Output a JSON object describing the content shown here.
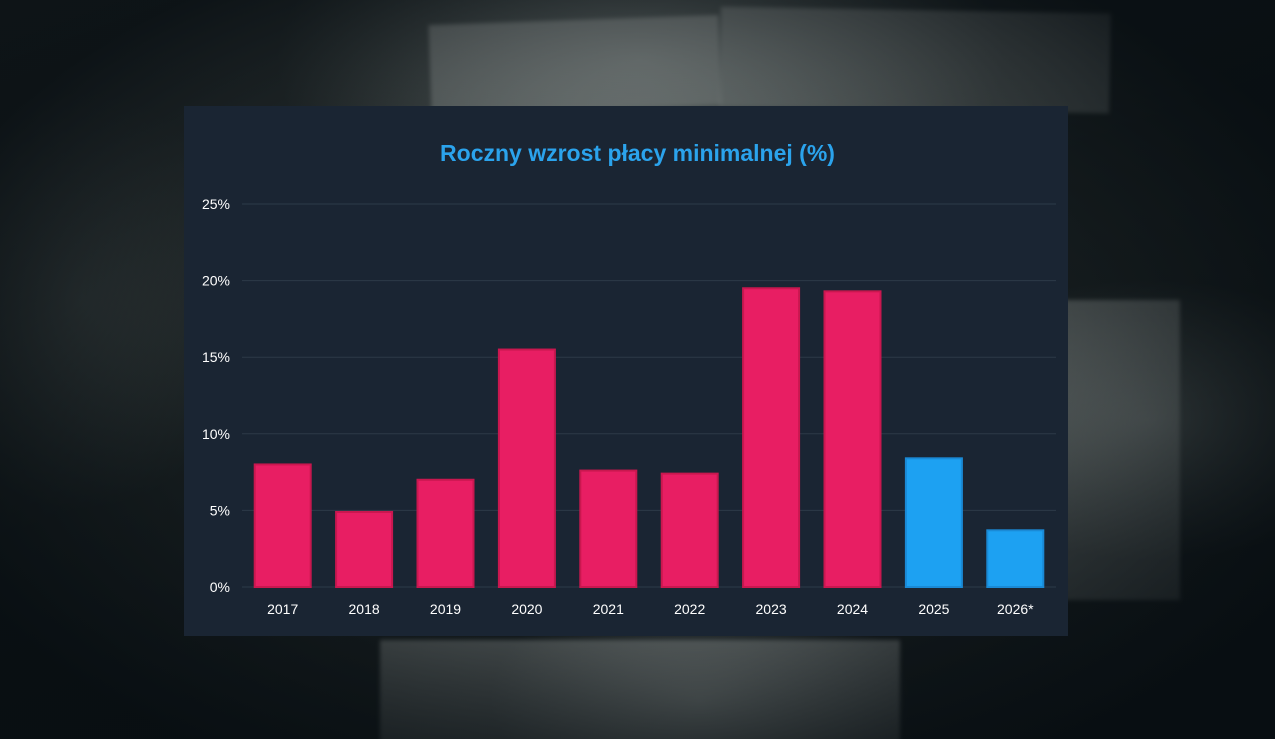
{
  "chart_data": {
    "type": "bar",
    "title": "Roczny wzrost płacy minimalnej (%)",
    "categories": [
      "2017",
      "2018",
      "2019",
      "2020",
      "2021",
      "2022",
      "2023",
      "2024",
      "2025",
      "2026*"
    ],
    "values": [
      8.0,
      4.9,
      7.0,
      15.5,
      7.6,
      7.4,
      19.5,
      19.3,
      8.4,
      3.7
    ],
    "bar_colors": [
      "#e81e63",
      "#e81e63",
      "#e81e63",
      "#e81e63",
      "#e81e63",
      "#e81e63",
      "#e81e63",
      "#e81e63",
      "#1da1f2",
      "#1da1f2"
    ],
    "y_ticks": [
      "0%",
      "5%",
      "10%",
      "15%",
      "20%",
      "25%"
    ],
    "y_tick_values": [
      0,
      5,
      10,
      15,
      20,
      25
    ],
    "ylim": [
      0,
      25
    ],
    "xlabel": "",
    "ylabel": "",
    "grid": true,
    "legend": "none"
  },
  "colors": {
    "title": "#2ba3ec",
    "panel_background": "#1a2533",
    "gridline": "#2c3a48",
    "bar_primary": "#e81e63",
    "bar_secondary": "#1da1f2"
  }
}
